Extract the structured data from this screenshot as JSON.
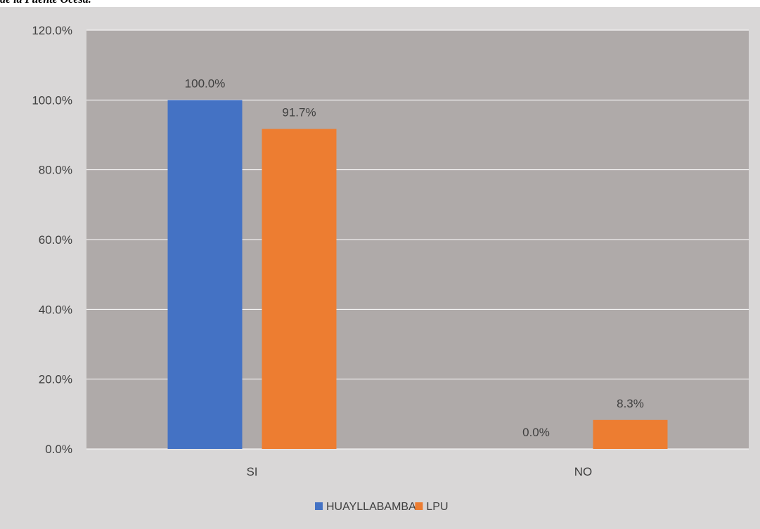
{
  "caption_fragment": "de la Puente Ocesa.",
  "colors": {
    "plot_background": "#afaaa9",
    "frame_background": "#d9d7d7",
    "gridline": "#ffffff"
  },
  "chart_data": {
    "type": "bar",
    "title": "",
    "xlabel": "",
    "ylabel": "",
    "categories": [
      "SI",
      "NO"
    ],
    "series": [
      {
        "name": "HUAYLLABAMBA",
        "color": "#4472c4",
        "values": [
          100.0,
          0.0
        ],
        "labels": [
          "100.0%",
          "0.0%"
        ]
      },
      {
        "name": "LPU",
        "color": "#ed7d31",
        "values": [
          91.7,
          8.3
        ],
        "labels": [
          "91.7%",
          "8.3%"
        ]
      }
    ],
    "ylim": [
      0,
      120
    ],
    "yticks": [
      0,
      20,
      40,
      60,
      80,
      100,
      120
    ],
    "ytick_labels": [
      "0.0%",
      "20.0%",
      "40.0%",
      "60.0%",
      "80.0%",
      "100.0%",
      "120.0%"
    ],
    "grid": true,
    "legend_position": "bottom"
  }
}
